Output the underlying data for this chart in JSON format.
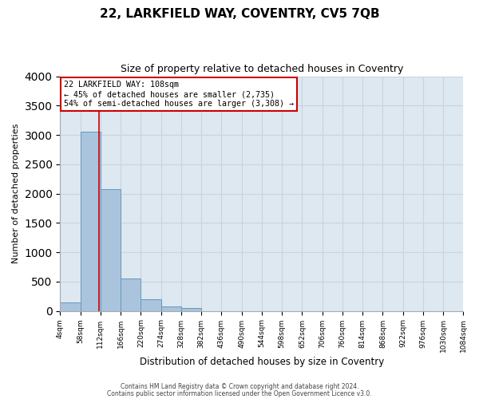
{
  "title": "22, LARKFIELD WAY, COVENTRY, CV5 7QB",
  "subtitle": "Size of property relative to detached houses in Coventry",
  "xlabel": "Distribution of detached houses by size in Coventry",
  "ylabel": "Number of detached properties",
  "bin_edges": [
    4,
    58,
    112,
    166,
    220,
    274,
    328,
    382,
    436,
    490,
    544,
    598,
    652,
    706,
    760,
    814,
    868,
    922,
    976,
    1030,
    1084
  ],
  "bar_heights": [
    150,
    3050,
    2080,
    550,
    200,
    70,
    50,
    0,
    0,
    0,
    0,
    0,
    0,
    0,
    0,
    0,
    0,
    0,
    0,
    0
  ],
  "bar_color": "#aac4de",
  "bar_edge_color": "#6699bb",
  "property_size": 108,
  "vline_color": "#cc0000",
  "annotation_line1": "22 LARKFIELD WAY: 108sqm",
  "annotation_line2": "← 45% of detached houses are smaller (2,735)",
  "annotation_line3": "54% of semi-detached houses are larger (3,308) →",
  "annotation_box_color": "#ffffff",
  "annotation_box_edge": "#cc0000",
  "ylim": [
    0,
    4000
  ],
  "yticks": [
    0,
    500,
    1000,
    1500,
    2000,
    2500,
    3000,
    3500,
    4000
  ],
  "grid_color": "#c8d4e0",
  "bg_color": "#dde8f0",
  "footer_line1": "Contains HM Land Registry data © Crown copyright and database right 2024.",
  "footer_line2": "Contains public sector information licensed under the Open Government Licence v3.0.",
  "title_fontsize": 11,
  "subtitle_fontsize": 9,
  "tick_label_fontsize": 6.5,
  "ylabel_fontsize": 8,
  "xlabel_fontsize": 8.5,
  "footer_fontsize": 5.5
}
